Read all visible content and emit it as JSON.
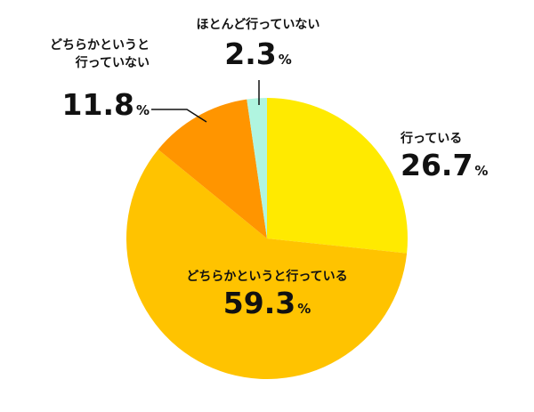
{
  "chart_data": {
    "type": "pie",
    "categories": [
      "行っている",
      "どちらかというと行っている",
      "どちらかというと\n行っていない",
      "ほとんど行っていない"
    ],
    "values": [
      26.7,
      59.3,
      11.8,
      2.3
    ],
    "unit": "%",
    "colors": [
      "#ffea00",
      "#ffc300",
      "#ff9500",
      "#b0f5e0"
    ]
  }
}
